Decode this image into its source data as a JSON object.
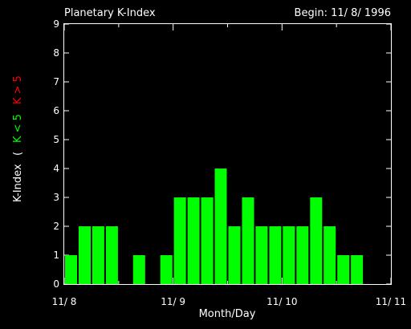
{
  "chart_data": {
    "type": "bar",
    "title": "Planetary K-Index",
    "begin_label": "Begin: 11/ 8/ 1996",
    "xlabel": "Month/Day",
    "ylabel": {
      "main": "K-Index",
      "paren": "(",
      "low": "K < 5",
      "high": "K > 5"
    },
    "ylim": [
      0,
      9
    ],
    "yticks": [
      "0",
      "1",
      "2",
      "3",
      "4",
      "5",
      "6",
      "7",
      "8",
      "9"
    ],
    "xticks": [
      "11/ 8",
      "11/ 9",
      "11/ 10",
      "11/ 11"
    ],
    "interval_hours": 3,
    "values": [
      1,
      2,
      2,
      2,
      0,
      1,
      0,
      1,
      3,
      3,
      3,
      4,
      2,
      3,
      2,
      2,
      2,
      2,
      3,
      2,
      1,
      1,
      0,
      0
    ],
    "colors": {
      "low": "#00ff00",
      "high": "#ff0000",
      "axes": "#ffffff",
      "background": "#000000"
    }
  }
}
